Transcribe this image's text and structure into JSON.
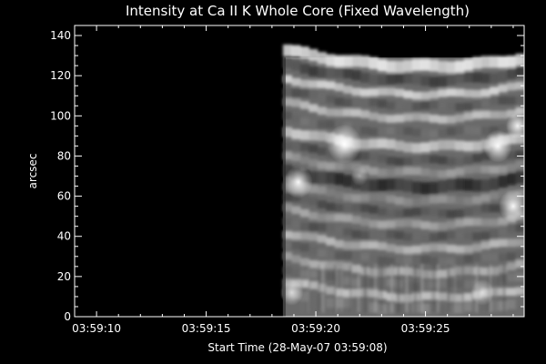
{
  "chart_data": {
    "type": "heatmap",
    "title": "Intensity at Ca II K Whole Core (Fixed Wavelength)",
    "xlabel": "Start Time (28-May-07 03:59:08)",
    "ylabel": "arcsec",
    "xlim": [
      1.0,
      21.5
    ],
    "ylim": [
      0,
      145
    ],
    "x_ticks": [
      2,
      7,
      12,
      17
    ],
    "x_tick_labels": [
      "03:59:10",
      "03:59:15",
      "03:59:20",
      "03:59:25"
    ],
    "y_ticks": [
      0,
      20,
      40,
      60,
      80,
      100,
      120,
      140
    ],
    "y_tick_labels": [
      "0",
      "20",
      "40",
      "60",
      "80",
      "100",
      "120",
      "140"
    ],
    "data_extent": {
      "x": [
        10.5,
        21.5
      ],
      "y": [
        0,
        129
      ]
    },
    "colormap": "grayscale",
    "background": "#000000",
    "grid": false
  }
}
